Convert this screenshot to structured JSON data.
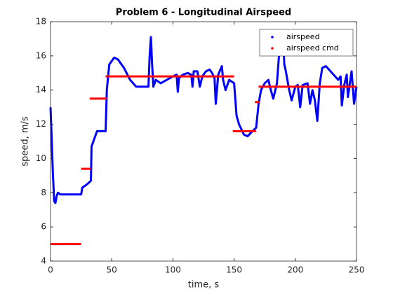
{
  "chart_data": {
    "type": "line",
    "title": "Problem 6 - Longitudinal Airspeed",
    "xlabel": "time, s",
    "ylabel": "speed, m/s",
    "xlim": [
      0,
      250
    ],
    "xticks": [
      0,
      50,
      100,
      150,
      200,
      250
    ],
    "ylim": [
      4,
      18
    ],
    "yticks": [
      4,
      6,
      8,
      10,
      12,
      14,
      16,
      18
    ],
    "grid": false,
    "legend": "northeast",
    "series": [
      {
        "name": "airspeed",
        "color": "#0000ff",
        "x": [
          0,
          2,
          3,
          4,
          5,
          6,
          8,
          25,
          26,
          30,
          33,
          33.5,
          36,
          38,
          45,
          46,
          48,
          52,
          55,
          60,
          65,
          70,
          80,
          81,
          82,
          83,
          84,
          86,
          90,
          95,
          100,
          103,
          104,
          105,
          108,
          112,
          115,
          116,
          117,
          120,
          122,
          124,
          127,
          130,
          132,
          134,
          135,
          137,
          140,
          141,
          143,
          146,
          150,
          152,
          154,
          158,
          161,
          165,
          168,
          170,
          172,
          175,
          178,
          180,
          182,
          185,
          188,
          190,
          191,
          192,
          195,
          197,
          200,
          202,
          204,
          206,
          210,
          212,
          214,
          216,
          218,
          220,
          222,
          225,
          230,
          235,
          237,
          238,
          240,
          242,
          243,
          246,
          248,
          250
        ],
        "values": [
          13,
          9,
          7.5,
          7.4,
          7.8,
          8,
          7.9,
          7.9,
          8.3,
          8.5,
          8.7,
          10.7,
          11.2,
          11.6,
          11.6,
          14,
          15.5,
          15.9,
          15.8,
          15.3,
          14.6,
          14.2,
          14.2,
          16,
          17.1,
          15.5,
          14.2,
          14.6,
          14.4,
          14.6,
          14.8,
          14.9,
          13.9,
          14.7,
          14.9,
          15,
          14.9,
          14.2,
          15.1,
          15.1,
          14.2,
          14.8,
          15.1,
          15.2,
          15,
          14.7,
          13.2,
          14.9,
          15.4,
          14.6,
          14,
          14.6,
          14.4,
          12.5,
          12,
          11.4,
          11.3,
          11.6,
          11.8,
          13.2,
          14,
          14.4,
          14.6,
          14,
          13.5,
          14.4,
          17.3,
          17.4,
          15.5,
          15.2,
          14,
          13.4,
          14.2,
          14.3,
          13,
          14.3,
          14.4,
          13.2,
          14,
          13.4,
          12.2,
          14.4,
          15.3,
          15.4,
          15,
          14.6,
          14.8,
          13.1,
          14.3,
          14.9,
          13.6,
          15.1,
          13.2,
          14.2
        ]
      },
      {
        "name": "airspeed cmd",
        "color": "#ff0000",
        "x": [
          0,
          25,
          null,
          25,
          33,
          null,
          32,
          46,
          null,
          45,
          150,
          null,
          149,
          168,
          null,
          167,
          171,
          null,
          170,
          250
        ],
        "values": [
          5,
          5,
          null,
          9.4,
          9.4,
          null,
          13.5,
          13.5,
          null,
          14.8,
          14.8,
          null,
          11.6,
          11.6,
          null,
          13.3,
          13.3,
          null,
          14.2,
          14.2
        ]
      }
    ]
  }
}
